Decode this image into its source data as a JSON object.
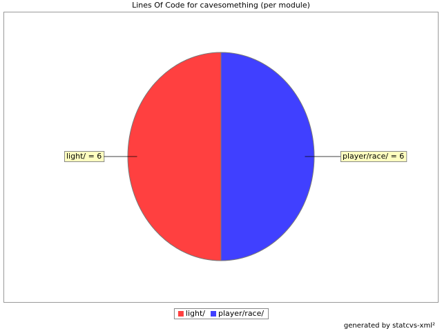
{
  "chart_data": {
    "type": "pie",
    "title": "Lines Of Code for cavesomething (per module)",
    "categories": [
      "light/",
      "player/race/"
    ],
    "values": [
      6,
      6
    ],
    "value_labels": [
      "light/ = 6",
      "player/race/ = 6"
    ],
    "colors": [
      "#ff4040",
      "#4040ff"
    ],
    "legend": "bottom",
    "credit": "generated by statcvs-xml²"
  }
}
